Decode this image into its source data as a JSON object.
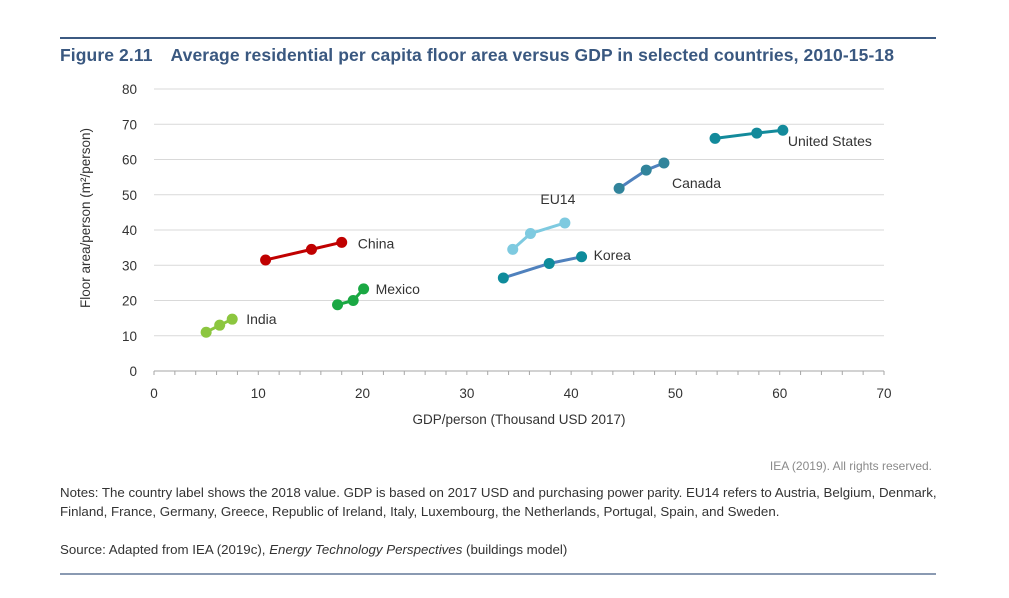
{
  "figure": {
    "number": "Figure 2.11",
    "title": "Average residential per capita floor area versus GDP in selected countries, 2010-15-18"
  },
  "credit": "IEA (2019). All rights reserved.",
  "notes": "Notes: The country label shows the 2018 value. GDP is based on 2017 USD and purchasing power parity. EU14 refers to Austria, Belgium, Denmark, Finland, France, Germany, Greece, Republic of Ireland, Italy, Luxembourg, the Netherlands, Portugal, Spain, and Sweden.",
  "source": {
    "prefix": "Source: Adapted from IEA (2019c), ",
    "italic": "Energy Technology Perspectives",
    "suffix": " (buildings model)"
  },
  "chart_data": {
    "type": "line",
    "title": "Average residential per capita floor area versus GDP in selected countries, 2010-15-18",
    "xlabel": "GDP/person (Thousand USD 2017)",
    "ylabel": "Floor area/person (m²/person)",
    "xlim": [
      0,
      70
    ],
    "ylim": [
      0,
      80
    ],
    "xticks": [
      0,
      10,
      20,
      30,
      40,
      50,
      60,
      70
    ],
    "yticks": [
      0,
      10,
      20,
      30,
      40,
      50,
      60,
      70,
      80
    ],
    "grid": "horizontal",
    "legend": "none (direct labels)",
    "series": [
      {
        "name": "India",
        "color": "#8cc63f",
        "x": [
          5.0,
          6.3,
          7.5
        ],
        "y": [
          11.0,
          13.0,
          14.7
        ]
      },
      {
        "name": "China",
        "color": "#c00000",
        "x": [
          10.7,
          15.1,
          18.0
        ],
        "y": [
          31.5,
          34.5,
          36.5
        ]
      },
      {
        "name": "Mexico",
        "color": "#1aa843",
        "x": [
          17.6,
          19.1,
          20.1
        ],
        "y": [
          18.8,
          20.0,
          23.3
        ]
      },
      {
        "name": "EU14",
        "color": "#7ecae0",
        "x": [
          34.4,
          36.1,
          39.4
        ],
        "y": [
          34.5,
          39.0,
          42.0
        ]
      },
      {
        "name": "Korea",
        "color": "#0e8b9b",
        "line_color": "#4f81bd",
        "x": [
          33.5,
          37.9,
          41.0
        ],
        "y": [
          26.4,
          30.5,
          32.4
        ]
      },
      {
        "name": "Canada",
        "color": "#31849b",
        "line_color": "#4f81bd",
        "x": [
          44.6,
          47.2,
          48.9
        ],
        "y": [
          51.8,
          57.0,
          59.0
        ]
      },
      {
        "name": "United States",
        "color": "#138a9b",
        "x": [
          53.8,
          57.8,
          60.3
        ],
        "y": [
          66.0,
          67.5,
          68.3
        ]
      }
    ]
  }
}
